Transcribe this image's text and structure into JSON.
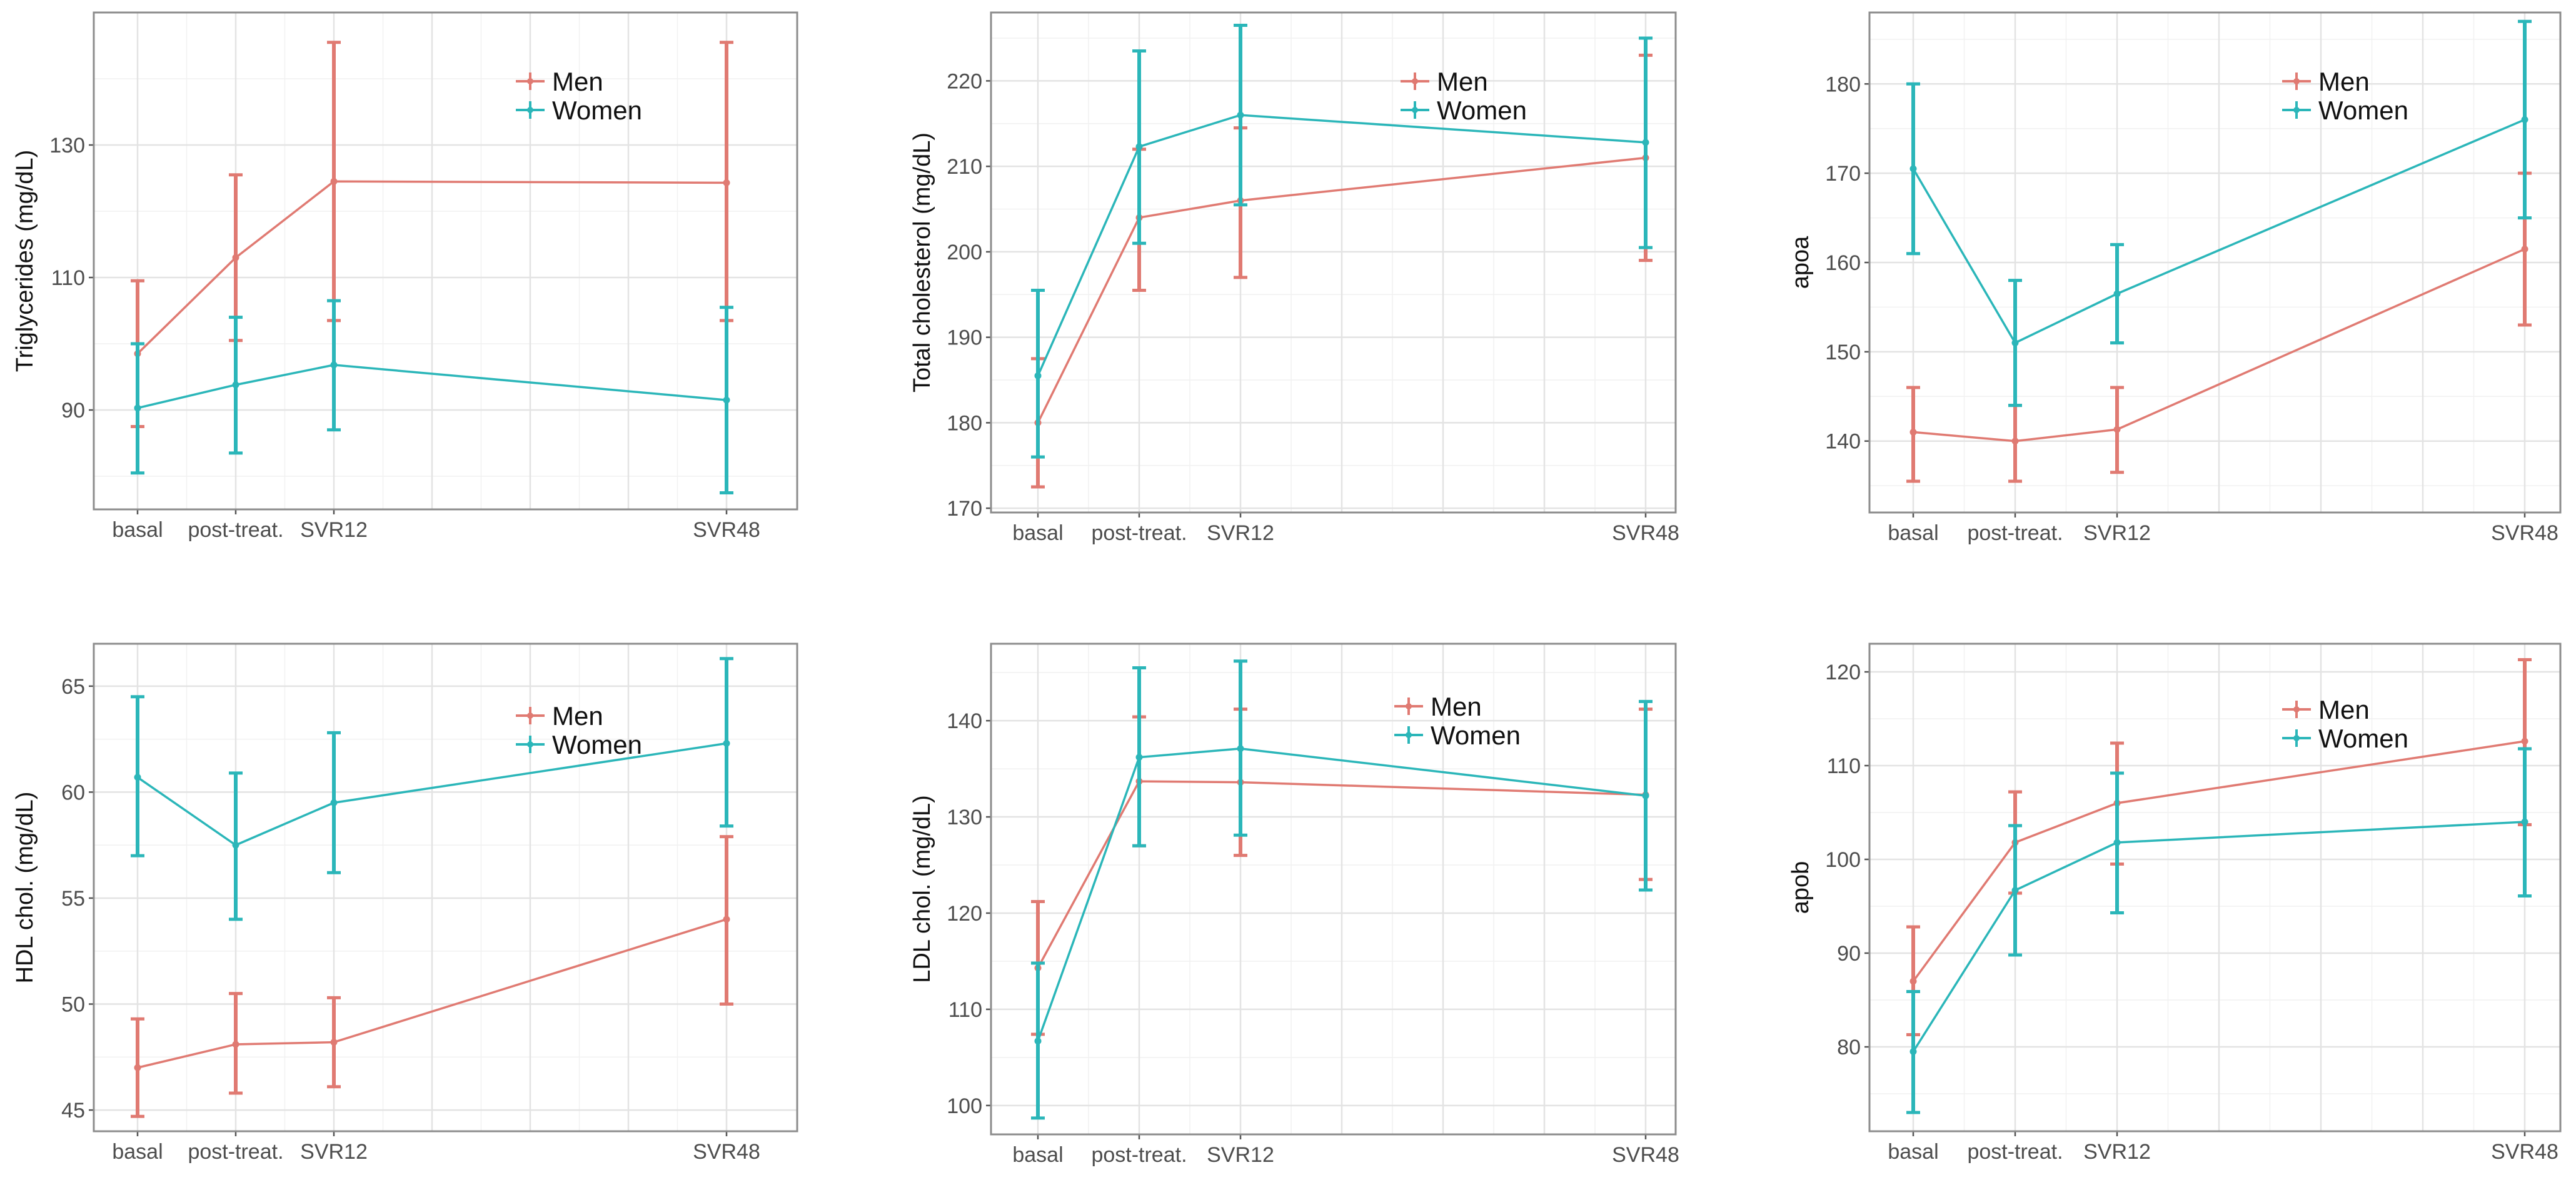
{
  "colors": {
    "men": "#E07A72",
    "women": "#2BB6B9"
  },
  "legend": {
    "men": "Men",
    "women": "Women"
  },
  "chart_data": [
    {
      "type": "line",
      "ylabel": "Triglycerides (mg/dL)",
      "x_positions": [
        0,
        1,
        2,
        6
      ],
      "categories": [
        "basal",
        "post-treat.",
        "SVR12",
        "SVR48"
      ],
      "ylim": [
        75,
        150
      ],
      "yticks": [
        90,
        110,
        130
      ],
      "series": [
        {
          "name": "Men",
          "values": [
            98.5,
            113,
            124.5,
            124.3
          ],
          "lower": [
            87.5,
            100.5,
            103.5,
            103.5
          ],
          "upper": [
            109.5,
            125.5,
            145.5,
            145.5
          ]
        },
        {
          "name": "Women",
          "values": [
            90.3,
            93.8,
            96.8,
            91.5
          ],
          "lower": [
            80.5,
            83.5,
            87,
            77.5
          ],
          "upper": [
            100,
            104,
            106.5,
            105.5
          ]
        }
      ]
    },
    {
      "type": "line",
      "ylabel": "Total cholesterol (mg/dL)",
      "x_positions": [
        0,
        1,
        2,
        6
      ],
      "categories": [
        "basal",
        "post-treat.",
        "SVR12",
        "SVR48"
      ],
      "ylim": [
        169.5,
        228
      ],
      "yticks": [
        170,
        180,
        190,
        200,
        210,
        220
      ],
      "series": [
        {
          "name": "Men",
          "values": [
            180,
            204,
            206,
            211
          ],
          "lower": [
            172.5,
            195.5,
            197,
            199
          ],
          "upper": [
            187.5,
            212,
            214.5,
            223
          ]
        },
        {
          "name": "Women",
          "values": [
            185.5,
            212.3,
            216,
            212.8
          ],
          "lower": [
            176,
            201,
            205.5,
            200.5
          ],
          "upper": [
            195.5,
            223.5,
            226.5,
            225
          ]
        }
      ]
    },
    {
      "type": "line",
      "ylabel": "apoa",
      "x_positions": [
        0,
        1,
        2,
        6
      ],
      "categories": [
        "basal",
        "post-treat.",
        "SVR12",
        "SVR48"
      ],
      "ylim": [
        132,
        188
      ],
      "yticks": [
        140,
        150,
        160,
        170,
        180
      ],
      "series": [
        {
          "name": "Men",
          "values": [
            141,
            140,
            141.3,
            161.5
          ],
          "lower": [
            135.5,
            135.5,
            136.5,
            153
          ],
          "upper": [
            146,
            144,
            146,
            170
          ]
        },
        {
          "name": "Women",
          "values": [
            170.5,
            151,
            156.5,
            176
          ],
          "lower": [
            161,
            144,
            151,
            165
          ],
          "upper": [
            180,
            158,
            162,
            187
          ]
        }
      ]
    },
    {
      "type": "line",
      "ylabel": "HDL chol. (mg/dL)",
      "x_positions": [
        0,
        1,
        2,
        6
      ],
      "categories": [
        "basal",
        "post-treat.",
        "SVR12",
        "SVR48"
      ],
      "ylim": [
        44,
        67
      ],
      "yticks": [
        45,
        50,
        55,
        60,
        65
      ],
      "series": [
        {
          "name": "Men",
          "values": [
            47,
            48.1,
            48.2,
            54
          ],
          "lower": [
            44.7,
            45.8,
            46.1,
            50
          ],
          "upper": [
            49.3,
            50.5,
            50.3,
            57.9
          ]
        },
        {
          "name": "Women",
          "values": [
            60.7,
            57.5,
            59.5,
            62.3
          ],
          "lower": [
            57,
            54,
            56.2,
            58.4
          ],
          "upper": [
            64.5,
            60.9,
            62.8,
            66.3
          ]
        }
      ]
    },
    {
      "type": "line",
      "ylabel": "LDL chol. (mg/dL)",
      "x_positions": [
        0,
        1,
        2,
        6
      ],
      "categories": [
        "basal",
        "post-treat.",
        "SVR12",
        "SVR48"
      ],
      "ylim": [
        97,
        148
      ],
      "yticks": [
        100,
        110,
        120,
        130,
        140
      ],
      "series": [
        {
          "name": "Men",
          "values": [
            114.3,
            133.7,
            133.6,
            132.3
          ],
          "lower": [
            107.4,
            127,
            126,
            123.5
          ],
          "upper": [
            121.2,
            140.4,
            141.2,
            141.2
          ]
        },
        {
          "name": "Women",
          "values": [
            106.7,
            136.2,
            137.1,
            132.2
          ],
          "lower": [
            98.7,
            127,
            128.1,
            122.4
          ],
          "upper": [
            114.8,
            145.5,
            146.2,
            142
          ]
        }
      ]
    },
    {
      "type": "line",
      "ylabel": "apob",
      "x_positions": [
        0,
        1,
        2,
        6
      ],
      "categories": [
        "basal",
        "post-treat.",
        "SVR12",
        "SVR48"
      ],
      "ylim": [
        71,
        123
      ],
      "yticks": [
        80,
        90,
        100,
        110,
        120
      ],
      "series": [
        {
          "name": "Men",
          "values": [
            87,
            101.8,
            106,
            112.6
          ],
          "lower": [
            81.3,
            96.4,
            99.5,
            103.7
          ],
          "upper": [
            92.8,
            107.2,
            112.4,
            121.3
          ]
        },
        {
          "name": "Women",
          "values": [
            79.5,
            96.7,
            101.8,
            104
          ],
          "lower": [
            73,
            89.8,
            94.3,
            96.1
          ],
          "upper": [
            85.9,
            103.6,
            109.2,
            111.8
          ]
        }
      ]
    }
  ]
}
